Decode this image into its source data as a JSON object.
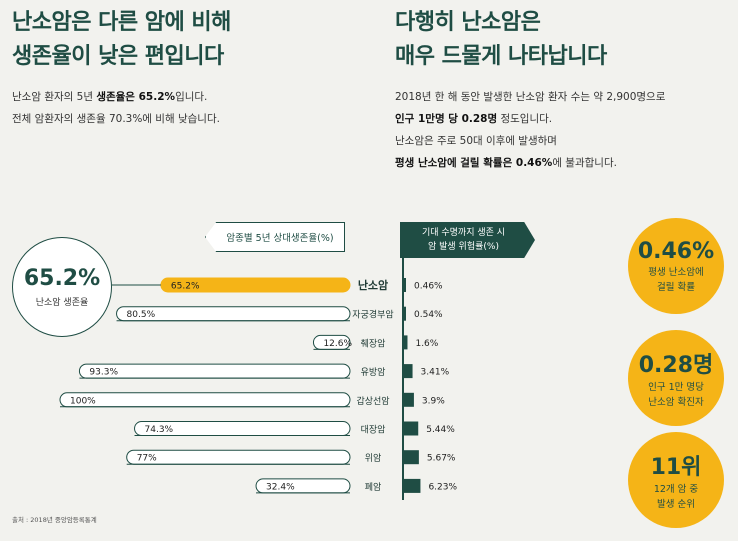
{
  "left_section": {
    "heading_lines": [
      "난소암은 다른 암에 비해",
      "생존율이 낮은 편입니다"
    ],
    "para_lines": [
      {
        "pre": "난소암 환자의 5년 ",
        "bold": "생존율은 65.2%",
        "post": "입니다."
      },
      {
        "pre": "전체 암환자의 생존율 70.3%에 비해 낮습니다.",
        "bold": "",
        "post": ""
      }
    ]
  },
  "right_section": {
    "heading_lines": [
      "다행히 난소암은",
      "매우 드물게 나타납니다"
    ],
    "para_lines": [
      {
        "pre": "2018년 한 해 동안 발생한 난소암 환자 수는 약 2,900명으로",
        "bold": "",
        "post": ""
      },
      {
        "pre": "",
        "bold": "인구 1만명 당 0.28명",
        "post": " 정도입니다."
      },
      {
        "pre": "난소암은 주로 50대 이후에 발생하며",
        "bold": "",
        "post": ""
      },
      {
        "pre": "",
        "bold": "평생 난소암에 걸릴 확률은 0.46%",
        "post": "에 불과합니다."
      }
    ]
  },
  "left_tag": "암종별 5년 상대생존율(%)",
  "right_tag_lines": [
    "기대 수명까지 생존 시",
    "암 발생 위험률(%)"
  ],
  "circle_left": {
    "value": "65.2%",
    "label": "난소암 생존율"
  },
  "circles_right": [
    {
      "value": "0.46%",
      "label_lines": [
        "평생 난소암에",
        "걸릴 확률"
      ]
    },
    {
      "value": "0.28명",
      "label_lines": [
        "인구 1만 명당",
        "난소암 확진자"
      ]
    },
    {
      "value": "11위",
      "label_lines": [
        "12개 암 중",
        "발생 순위"
      ]
    }
  ],
  "source": "출처 : 2018년 중앙암등록통계",
  "colors": {
    "accent": "#f5b417",
    "dark": "#1f4d44",
    "highlight_bg": "#f5b417"
  },
  "chart_data": {
    "type": "bar",
    "categories": [
      "난소암",
      "자궁경부암",
      "췌장암",
      "유방암",
      "갑상선암",
      "대장암",
      "위암",
      "폐암"
    ],
    "series": [
      {
        "name": "암종별 5년 상대생존율(%)",
        "values": [
          65.2,
          80.5,
          12.6,
          93.3,
          100,
          74.3,
          77,
          32.4
        ],
        "labels": [
          "65.2%",
          "80.5%",
          "12.6%",
          "93.3%",
          "100%",
          "74.3%",
          "77%",
          "32.4%"
        ]
      },
      {
        "name": "기대 수명까지 생존 시 암 발생 위험률(%)",
        "values": [
          0.46,
          0.54,
          1.6,
          3.41,
          3.9,
          5.44,
          5.67,
          6.23
        ],
        "labels": [
          "0.46%",
          "0.54%",
          "1.6%",
          "3.41%",
          "3.9%",
          "5.44%",
          "5.67%",
          "6.23%"
        ]
      }
    ],
    "highlight_category": "난소암"
  }
}
